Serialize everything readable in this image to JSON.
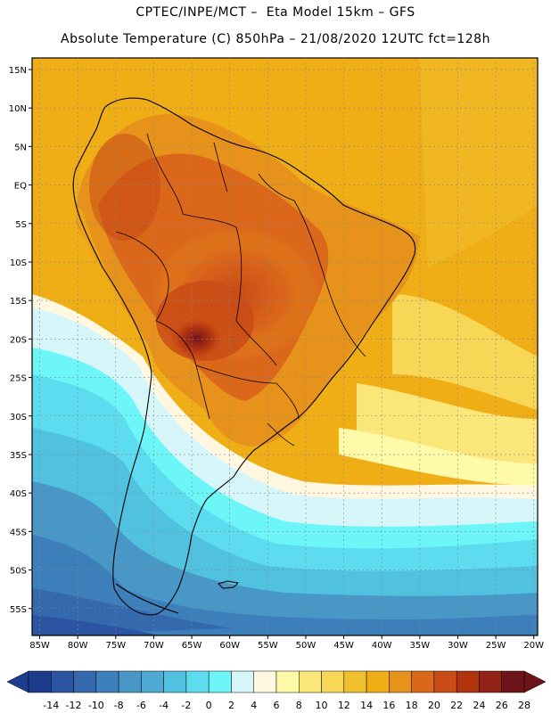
{
  "header": {
    "line1": "CPTEC/INPE/MCT –  Eta Model 15km – GFS",
    "line2": "Absolute Temperature (C) 850hPa – 21/08/2020 12UTC fct=128h"
  },
  "map": {
    "lat_labels": [
      "15N",
      "10N",
      "5N",
      "EQ",
      "5S",
      "10S",
      "15S",
      "20S",
      "25S",
      "30S",
      "35S",
      "40S",
      "45S",
      "50S",
      "55S"
    ],
    "lat_values": [
      15,
      10,
      5,
      0,
      -5,
      -10,
      -15,
      -20,
      -25,
      -30,
      -35,
      -40,
      -45,
      -50,
      -55
    ],
    "lon_labels": [
      "85W",
      "80W",
      "75W",
      "70W",
      "65W",
      "60W",
      "55W",
      "50W",
      "45W",
      "40W",
      "35W",
      "30W",
      "25W",
      "20W"
    ],
    "lon_values": [
      -85,
      -80,
      -75,
      -70,
      -65,
      -60,
      -55,
      -50,
      -45,
      -40,
      -35,
      -30,
      -25,
      -20
    ],
    "extent": {
      "west": -86,
      "east": -19.5,
      "north": 16.5,
      "south": -58.5
    }
  },
  "colorbar": {
    "labels": [
      "-14",
      "-12",
      "-10",
      "-8",
      "-6",
      "-4",
      "-2",
      "0",
      "2",
      "4",
      "6",
      "8",
      "10",
      "12",
      "14",
      "16",
      "18",
      "20",
      "22",
      "24",
      "26",
      "28"
    ],
    "colors": [
      "#1e3c8c",
      "#2b55a3",
      "#3469ae",
      "#3d7fba",
      "#4897c6",
      "#4eaad3",
      "#51c1e0",
      "#5cdcee",
      "#6cf6f8",
      "#d6f6fa",
      "#fff7e0",
      "#fffaa8",
      "#fbe67a",
      "#f7d755",
      "#f1c02f",
      "#efad16",
      "#e7921b",
      "#db671a",
      "#c94b16",
      "#b2340f",
      "#932218",
      "#6d1418"
    ]
  }
}
